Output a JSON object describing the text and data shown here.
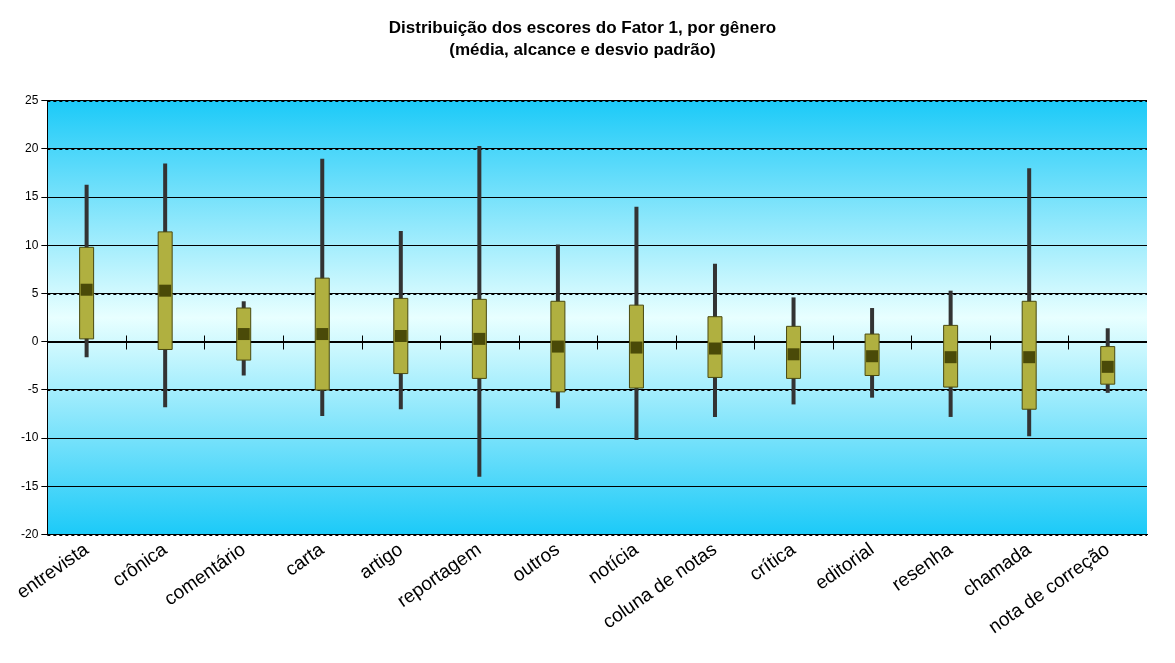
{
  "chart_data": {
    "type": "box",
    "title": "Distribuição dos escores do Fator 1, por gênero",
    "subtitle": "(média, alcance e desvio padrão)",
    "categories": [
      "entrevista",
      "crônica",
      "comentário",
      "carta",
      "artigo",
      "reportagem",
      "outros",
      "notícia",
      "coluna de notas",
      "crítica",
      "editorial",
      "resenha",
      "chamada",
      "nota de correção"
    ],
    "color": "#b0b040",
    "boxes": [
      {
        "low": -1.6,
        "q1": 0.3,
        "median": 5.4,
        "q3": 9.8,
        "high": 16.3
      },
      {
        "low": -6.8,
        "q1": -0.8,
        "median": 5.3,
        "q3": 11.4,
        "high": 18.5
      },
      {
        "low": -3.5,
        "q1": -1.9,
        "median": 0.8,
        "q3": 3.5,
        "high": 4.2
      },
      {
        "low": -7.7,
        "q1": -5,
        "median": 0.8,
        "q3": 6.6,
        "high": 19
      },
      {
        "low": -7,
        "q1": -3.3,
        "median": 0.6,
        "q3": 4.5,
        "high": 11.5
      },
      {
        "low": -14,
        "q1": -3.8,
        "median": 0.3,
        "q3": 4.4,
        "high": 20.3
      },
      {
        "low": -6.9,
        "q1": -5.2,
        "median": -0.5,
        "q3": 4.2,
        "high": 10.1
      },
      {
        "low": -10.2,
        "q1": -4.8,
        "median": -0.6,
        "q3": 3.8,
        "high": 14
      },
      {
        "low": -7.8,
        "q1": -3.7,
        "median": -0.7,
        "q3": 2.6,
        "high": 8.1
      },
      {
        "low": -6.5,
        "q1": -3.8,
        "median": -1.3,
        "q3": 1.6,
        "high": 4.6
      },
      {
        "low": -5.8,
        "q1": -3.5,
        "median": -1.5,
        "q3": 0.8,
        "high": 3.5
      },
      {
        "low": -7.8,
        "q1": -4.7,
        "median": -1.6,
        "q3": 1.7,
        "high": 5.3
      },
      {
        "low": -9.8,
        "q1": -7,
        "median": -1.6,
        "q3": 4.2,
        "high": 18
      },
      {
        "low": -5.3,
        "q1": -4.4,
        "median": -2.6,
        "q3": -0.5,
        "high": 1.4
      }
    ],
    "ylim": [
      -20,
      25
    ],
    "yticks": [
      -20,
      -15,
      -10,
      -5,
      0,
      5,
      10,
      15,
      20,
      25
    ],
    "grid": "y",
    "legend": false
  }
}
